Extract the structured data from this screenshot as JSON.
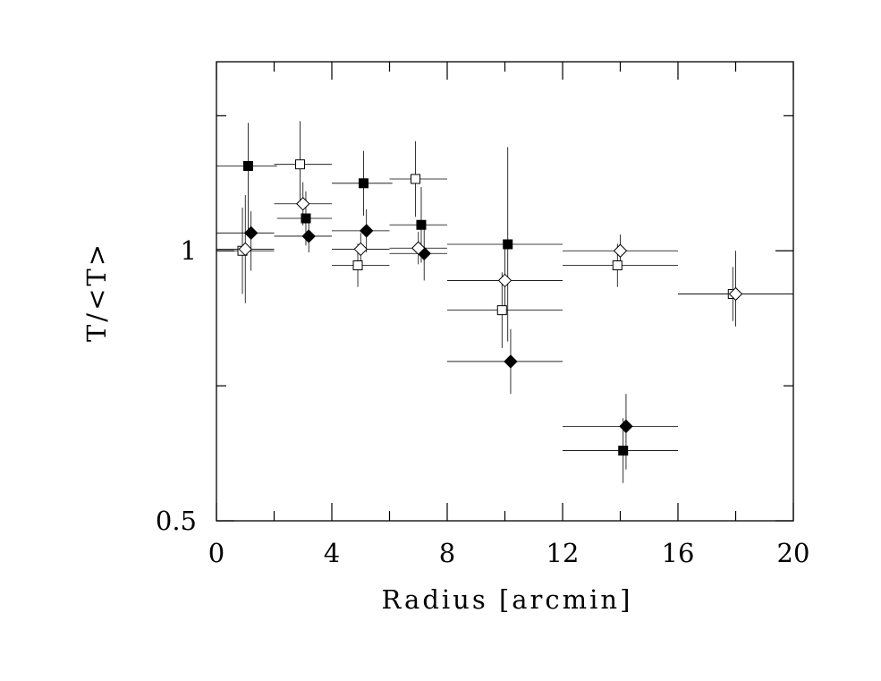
{
  "chart_data": {
    "type": "scatter",
    "title": "",
    "xlabel": "Radius [arcmin]",
    "ylabel": "T/<T>",
    "xlim": [
      0,
      20
    ],
    "ylim": [
      0.5,
      1.35
    ],
    "xticks": [
      0,
      4,
      8,
      12,
      16,
      20
    ],
    "xtick_labels": [
      "0",
      "4",
      "8",
      "12",
      "16",
      "20"
    ],
    "yticks": [
      0.5,
      1
    ],
    "ytick_labels": [
      "0.5",
      "1"
    ],
    "grid": false,
    "legend": "none",
    "series": [
      {
        "marker": "filled-square",
        "points": [
          {
            "x": 1.1,
            "y": 1.157,
            "xerr": [
              1.1,
              1.0
            ],
            "yerr": [
              0.12,
              0.08
            ]
          },
          {
            "x": 3.1,
            "y": 1.06,
            "xerr": [
              1.0,
              0.9
            ],
            "yerr": [
              0.05,
              0.05
            ]
          },
          {
            "x": 5.1,
            "y": 1.125,
            "xerr": [
              1.1,
              1.0
            ],
            "yerr": [
              0.06,
              0.06
            ]
          },
          {
            "x": 7.1,
            "y": 1.048,
            "xerr": [
              1.1,
              0.9
            ],
            "yerr": [
              0.07,
              0.07
            ]
          },
          {
            "x": 10.1,
            "y": 1.012,
            "xerr": [
              2.1,
              1.9
            ],
            "yerr": [
              0.18,
              0.18
            ]
          },
          {
            "x": 14.1,
            "y": 0.63,
            "xerr": [
              2.1,
              1.9
            ],
            "yerr": [
              0.06,
              0.06
            ]
          }
        ]
      },
      {
        "marker": "filled-diamond",
        "points": [
          {
            "x": 1.2,
            "y": 1.033,
            "xerr": [
              1.2,
              0.8
            ],
            "yerr": [
              0.07,
              0.04
            ]
          },
          {
            "x": 3.2,
            "y": 1.027,
            "xerr": [
              1.2,
              0.8
            ],
            "yerr": [
              0.03,
              0.03
            ]
          },
          {
            "x": 5.2,
            "y": 1.037,
            "xerr": [
              1.2,
              0.8
            ],
            "yerr": [
              0.04,
              0.04
            ]
          },
          {
            "x": 7.2,
            "y": 0.995,
            "xerr": [
              1.2,
              0.8
            ],
            "yerr": [
              0.05,
              0.05
            ]
          },
          {
            "x": 10.2,
            "y": 0.795,
            "xerr": [
              2.2,
              1.8
            ],
            "yerr": [
              0.06,
              0.06
            ]
          },
          {
            "x": 14.2,
            "y": 0.675,
            "xerr": [
              2.2,
              1.8
            ],
            "yerr": [
              0.08,
              0.06
            ]
          }
        ]
      },
      {
        "marker": "open-square",
        "points": [
          {
            "x": 0.9,
            "y": 1.0,
            "xerr": [
              0.9,
              1.1
            ],
            "yerr": [
              0.08,
              0.08
            ]
          },
          {
            "x": 2.9,
            "y": 1.16,
            "xerr": [
              0.9,
              1.1
            ],
            "yerr": [
              0.08,
              0.08
            ]
          },
          {
            "x": 4.9,
            "y": 0.973,
            "xerr": [
              0.9,
              1.1
            ],
            "yerr": [
              0.04,
              0.04
            ]
          },
          {
            "x": 6.9,
            "y": 1.133,
            "xerr": [
              0.9,
              1.1
            ],
            "yerr": [
              0.07,
              0.07
            ]
          },
          {
            "x": 9.9,
            "y": 0.89,
            "xerr": [
              1.9,
              2.1
            ],
            "yerr": [
              0.07,
              0.07
            ]
          },
          {
            "x": 13.9,
            "y": 0.973,
            "xerr": [
              1.9,
              2.1
            ],
            "yerr": [
              0.04,
              0.04
            ]
          },
          {
            "x": 17.9,
            "y": 0.92,
            "xerr": [
              1.9,
              2.1
            ],
            "yerr": [
              0.05,
              0.05
            ]
          }
        ]
      },
      {
        "marker": "open-diamond",
        "points": [
          {
            "x": 1.0,
            "y": 1.003,
            "xerr": [
              1.0,
              1.0
            ],
            "yerr": [
              0.1,
              0.1
            ]
          },
          {
            "x": 3.0,
            "y": 1.087,
            "xerr": [
              1.0,
              1.0
            ],
            "yerr": [
              0.04,
              0.04
            ]
          },
          {
            "x": 5.0,
            "y": 1.003,
            "xerr": [
              1.0,
              1.0
            ],
            "yerr": [
              0.03,
              0.03
            ]
          },
          {
            "x": 7.0,
            "y": 1.005,
            "xerr": [
              1.0,
              1.0
            ],
            "yerr": [
              0.03,
              0.03
            ]
          },
          {
            "x": 10.0,
            "y": 0.945,
            "xerr": [
              2.0,
              2.0
            ],
            "yerr": [
              0.06,
              0.06
            ]
          },
          {
            "x": 14.0,
            "y": 1.0,
            "xerr": [
              2.0,
              2.0
            ],
            "yerr": [
              0.03,
              0.03
            ]
          },
          {
            "x": 18.0,
            "y": 0.92,
            "xerr": [
              2.0,
              2.0
            ],
            "yerr": [
              0.06,
              0.08
            ]
          }
        ]
      }
    ]
  }
}
